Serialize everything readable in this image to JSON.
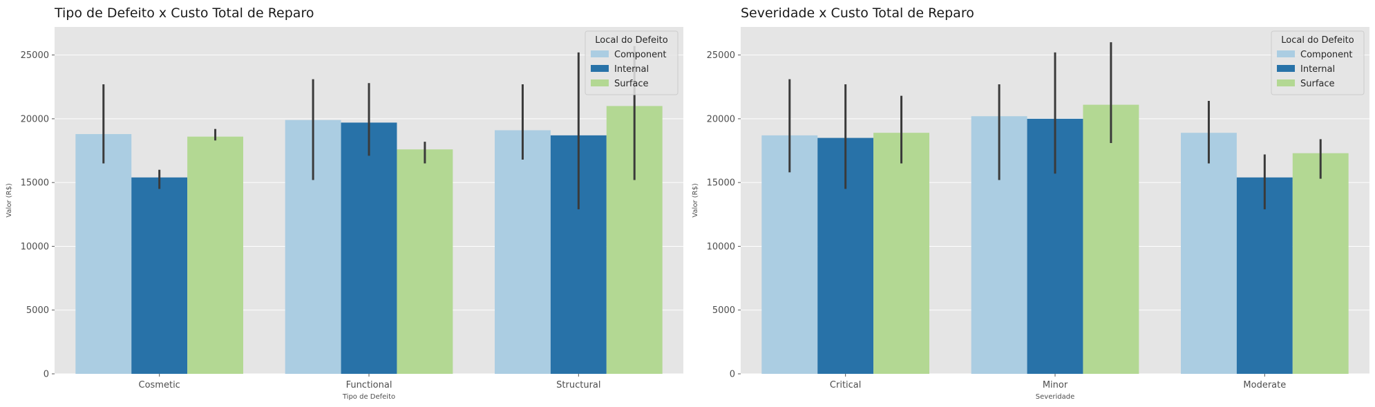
{
  "colors": {
    "Component": "#abcde2",
    "Internal": "#2872a8",
    "Surface": "#b3d893",
    "panel_bg": "#e5e5e5",
    "grid": "#ffffff",
    "error_bar": "#3a3a3a"
  },
  "chart_data": [
    {
      "type": "bar",
      "title": "Tipo de Defeito x Custo Total de Reparo",
      "xlabel": "Tipo de Defeito",
      "ylabel": "Valor (R$)",
      "ylim": [
        0,
        27200
      ],
      "yticks": [
        0,
        5000,
        10000,
        15000,
        20000,
        25000
      ],
      "grid": true,
      "legend": {
        "title": "Local do Defeito",
        "placement": "top-right"
      },
      "categories": [
        "Cosmetic",
        "Functional",
        "Structural"
      ],
      "series": [
        {
          "name": "Component",
          "values": [
            18800,
            19900,
            19100
          ],
          "err_low": [
            16500,
            15200,
            16800
          ],
          "err_high": [
            22700,
            23100,
            22700
          ]
        },
        {
          "name": "Internal",
          "values": [
            15400,
            19700,
            18700
          ],
          "err_low": [
            14500,
            17100,
            12900
          ],
          "err_high": [
            16000,
            22800,
            25200
          ]
        },
        {
          "name": "Surface",
          "values": [
            18600,
            17600,
            21000
          ],
          "err_low": [
            18300,
            16500,
            15200
          ],
          "err_high": [
            19200,
            18200,
            25700
          ]
        }
      ]
    },
    {
      "type": "bar",
      "title": "Severidade x Custo Total de Reparo",
      "xlabel": "Severidade",
      "ylabel": "Valor (R$)",
      "ylim": [
        0,
        27200
      ],
      "yticks": [
        0,
        5000,
        10000,
        15000,
        20000,
        25000
      ],
      "grid": true,
      "legend": {
        "title": "Local do Defeito",
        "placement": "top-right"
      },
      "categories": [
        "Critical",
        "Minor",
        "Moderate"
      ],
      "series": [
        {
          "name": "Component",
          "values": [
            18700,
            20200,
            18900
          ],
          "err_low": [
            15800,
            15200,
            16500
          ],
          "err_high": [
            23100,
            22700,
            21400
          ]
        },
        {
          "name": "Internal",
          "values": [
            18500,
            20000,
            15400
          ],
          "err_low": [
            14500,
            15700,
            12900
          ],
          "err_high": [
            22700,
            25200,
            17200
          ]
        },
        {
          "name": "Surface",
          "values": [
            18900,
            21100,
            17300
          ],
          "err_low": [
            16500,
            18100,
            15300
          ],
          "err_high": [
            21800,
            26000,
            18400
          ]
        }
      ]
    }
  ]
}
